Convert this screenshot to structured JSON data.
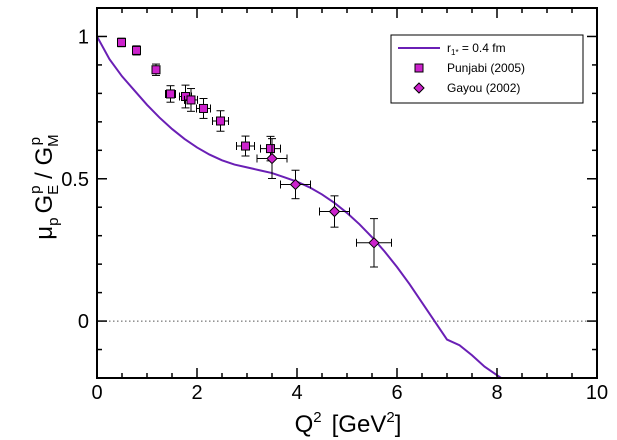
{
  "chart_data": {
    "type": "scatter",
    "xlabel": {
      "base": "Q",
      "sup": "2",
      "unit_open": "[GeV",
      "unit_sup": "2",
      "unit_close": "]"
    },
    "ylabel": {
      "mu": "μ",
      "mu_sub": "p",
      "g1": "G",
      "g1_sub": "E",
      "g1_sup": "p",
      "slash": " / ",
      "g2": "G",
      "g2_sub": "M",
      "g2_sup": "p"
    },
    "xlim": [
      0,
      10
    ],
    "ylim": [
      -0.2,
      1.1
    ],
    "xticks": [
      0,
      2,
      4,
      6,
      8,
      10
    ],
    "yticks": [
      0,
      0.5,
      1
    ],
    "reference_line": {
      "y": 0,
      "style": "dotted"
    },
    "legend": {
      "position": "top-right",
      "entries": [
        {
          "label_base": "r",
          "label_sub": "1*",
          "label_rest": " = 0.4 fm",
          "marker": "line"
        },
        {
          "label": "Punjabi (2005)",
          "marker": "square"
        },
        {
          "label": "Gayou (2002)",
          "marker": "diamond"
        }
      ]
    },
    "series": [
      {
        "name": "r1* = 0.4 fm",
        "kind": "line",
        "color": "#6a1fb5",
        "x": [
          0,
          0.25,
          0.5,
          0.75,
          1.0,
          1.25,
          1.5,
          1.75,
          2.0,
          2.25,
          2.5,
          2.75,
          3.0,
          3.25,
          3.5,
          3.75,
          4.0,
          4.25,
          4.5,
          4.75,
          5.0,
          5.25,
          5.5,
          5.75,
          6.0,
          6.25,
          6.5,
          6.75,
          7.0,
          7.25,
          7.5,
          7.75,
          8.0,
          8.25,
          8.3
        ],
        "y": [
          1.0,
          0.92,
          0.86,
          0.81,
          0.76,
          0.715,
          0.675,
          0.64,
          0.61,
          0.585,
          0.565,
          0.55,
          0.54,
          0.53,
          0.52,
          0.505,
          0.49,
          0.47,
          0.445,
          0.415,
          0.38,
          0.34,
          0.295,
          0.245,
          0.19,
          0.13,
          0.065,
          0.0,
          -0.065,
          -0.085,
          -0.12,
          -0.16,
          -0.19,
          -0.22,
          -0.23
        ]
      },
      {
        "name": "Punjabi (2005)",
        "kind": "points",
        "marker": "square",
        "color": "#cc22cc",
        "points": [
          {
            "x": 0.49,
            "y": 0.979,
            "dx": 0.05,
            "dy": 0.015
          },
          {
            "x": 0.79,
            "y": 0.951,
            "dx": 0.06,
            "dy": 0.016
          },
          {
            "x": 1.18,
            "y": 0.883,
            "dx": 0.08,
            "dy": 0.02
          },
          {
            "x": 1.47,
            "y": 0.798,
            "dx": 0.1,
            "dy": 0.029
          },
          {
            "x": 1.77,
            "y": 0.789,
            "dx": 0.12,
            "dy": 0.04
          },
          {
            "x": 1.88,
            "y": 0.777,
            "dx": 0.13,
            "dy": 0.04
          },
          {
            "x": 2.13,
            "y": 0.747,
            "dx": 0.14,
            "dy": 0.035
          },
          {
            "x": 2.47,
            "y": 0.703,
            "dx": 0.16,
            "dy": 0.036
          },
          {
            "x": 2.97,
            "y": 0.615,
            "dx": 0.18,
            "dy": 0.035
          },
          {
            "x": 3.47,
            "y": 0.606,
            "dx": 0.2,
            "dy": 0.043
          }
        ]
      },
      {
        "name": "Gayou (2002)",
        "kind": "points",
        "marker": "diamond",
        "color": "#cc22cc",
        "points": [
          {
            "x": 3.5,
            "y": 0.571,
            "dx": 0.3,
            "dy": 0.07
          },
          {
            "x": 3.97,
            "y": 0.48,
            "dx": 0.3,
            "dy": 0.05
          },
          {
            "x": 4.75,
            "y": 0.385,
            "dx": 0.3,
            "dy": 0.055
          },
          {
            "x": 5.54,
            "y": 0.275,
            "dx": 0.35,
            "dy": 0.085
          }
        ]
      }
    ]
  }
}
